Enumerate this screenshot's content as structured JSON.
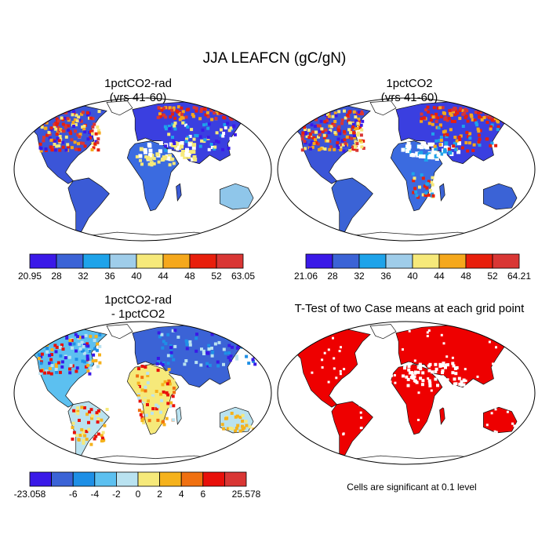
{
  "title": "JJA LEAFCN (gC/gN)",
  "panels": [
    {
      "title_line1": "1pctCO2-rad",
      "title_line2": "(yrs 41-60)"
    },
    {
      "title_line1": "1pctCO2",
      "title_line2": "(yrs 41-60)"
    },
    {
      "title_line1": "1pctCO2-rad",
      "title_line2": "- 1pctCO2"
    },
    {
      "title_line1": "T-Test of two Case means at each grid point",
      "title_line2": ""
    }
  ],
  "colorbars": [
    {
      "labels": [
        "20.95",
        "28",
        "32",
        "36",
        "40",
        "44",
        "48",
        "52",
        "63.05"
      ],
      "colors": [
        "#3a19e8",
        "#3b63d6",
        "#1ea3ea",
        "#9fcdea",
        "#f6e97a",
        "#f5a81c",
        "#e81f0c",
        "#d93634"
      ]
    },
    {
      "labels": [
        "21.06",
        "28",
        "32",
        "36",
        "40",
        "44",
        "48",
        "52",
        "64.21"
      ],
      "colors": [
        "#3a19e8",
        "#3b63d6",
        "#1ea3ea",
        "#9fcdea",
        "#f6e97a",
        "#f5a81c",
        "#e81f0c",
        "#d93634"
      ]
    },
    {
      "labels": [
        "-23.058",
        "-6",
        "-4",
        "-2",
        "0",
        "2",
        "4",
        "6",
        "25.578"
      ],
      "colors": [
        "#3a19e8",
        "#3b63d6",
        "#1e8fe6",
        "#5cc0f0",
        "#b9e2f0",
        "#f6e97a",
        "#f5b21c",
        "#f07010",
        "#e8100a",
        "#d93634"
      ]
    }
  ],
  "significance_note": "Cells are significant at 0.1 level",
  "significance_color": "#ee0000"
}
